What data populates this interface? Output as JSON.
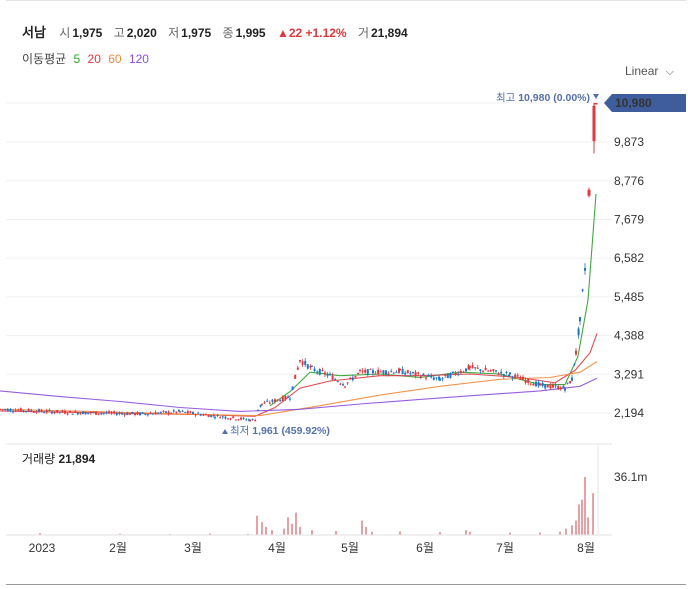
{
  "header": {
    "name": "서남",
    "open_label": "시",
    "open": "1,975",
    "high_label": "고",
    "high": "2,020",
    "low_label": "저",
    "low": "1,975",
    "close_label": "종",
    "close": "1,995",
    "change": "22",
    "change_pct": "+1.12%",
    "volume_label": "거",
    "volume": "21,894"
  },
  "ma": {
    "label": "이동평균",
    "periods": [
      "5",
      "20",
      "60",
      "120"
    ],
    "colors": [
      "#2aa02a",
      "#e0383e",
      "#f08a3c",
      "#8b4fd8"
    ]
  },
  "scale_mode": "Linear",
  "colors": {
    "up": "#e0383e",
    "down": "#1f77c8",
    "price_tag": "#3f5d9c",
    "volume": "#e8a0a4"
  },
  "chart_data": {
    "type": "candlestick",
    "y_ticks": [
      "10,980",
      "9,873",
      "8,776",
      "7,679",
      "6,582",
      "5,485",
      "4,388",
      "3,291",
      "2,194"
    ],
    "y_range": [
      1700,
      11150
    ],
    "x_ticks": [
      "2023",
      "2월",
      "3월",
      "4월",
      "5월",
      "6월",
      "7월",
      "8월"
    ],
    "last_price_label": "10,980",
    "max_annotation": {
      "label": "최고",
      "value": "10,980",
      "pct": "(0.00%)",
      "price": 10980
    },
    "min_annotation": {
      "label": "최저",
      "value": "1,961",
      "pct": "(459.92%)",
      "price": 1961
    },
    "volume_label": "거래량",
    "volume_value": "21,894",
    "volume_max_label": "36.1m",
    "volume_max": 36.1,
    "segments": [
      [
        0,
        2300,
        70,
        2210
      ],
      [
        70,
        2210,
        140,
        2170
      ],
      [
        140,
        2170,
        180,
        2230
      ],
      [
        180,
        2230,
        215,
        2110
      ],
      [
        215,
        2110,
        250,
        2000
      ],
      [
        250,
        2000,
        257,
        2000
      ],
      [
        258,
        2300,
        262,
        2450
      ],
      [
        262,
        2450,
        290,
        2650
      ],
      [
        290,
        2650,
        300,
        3700
      ],
      [
        300,
        3700,
        312,
        3450
      ],
      [
        312,
        3450,
        330,
        3250
      ],
      [
        330,
        3250,
        345,
        3000
      ],
      [
        345,
        3000,
        360,
        3350
      ],
      [
        360,
        3350,
        400,
        3380
      ],
      [
        400,
        3380,
        440,
        3150
      ],
      [
        440,
        3150,
        470,
        3480
      ],
      [
        470,
        3480,
        510,
        3280
      ],
      [
        510,
        3280,
        540,
        2980
      ],
      [
        540,
        2980,
        565,
        2900
      ],
      [
        565,
        2900,
        572,
        3150
      ],
      [
        572,
        3150,
        576,
        3900
      ],
      [
        576,
        3900,
        580,
        4800
      ],
      [
        580,
        4800,
        585,
        6300
      ],
      [
        585,
        6300,
        587,
        6000
      ]
    ],
    "jump_candles": [
      {
        "x": 589,
        "open": 8350,
        "close": 8520,
        "high": 8580,
        "low": 8300
      },
      {
        "x": 594,
        "open": 9900,
        "close": 10900,
        "high": 10980,
        "low": 9550
      },
      {
        "x": 596,
        "open": 10980,
        "close": 10980,
        "high": 10980,
        "low": 10980
      }
    ],
    "ma_points": [
      [
        [
          270,
          2400
        ],
        [
          290,
          2800
        ],
        [
          310,
          3350
        ],
        [
          340,
          3250
        ],
        [
          380,
          3300
        ],
        [
          420,
          3200
        ],
        [
          460,
          3350
        ],
        [
          500,
          3300
        ],
        [
          540,
          3000
        ],
        [
          565,
          3000
        ],
        [
          578,
          3800
        ],
        [
          588,
          5400
        ],
        [
          596,
          8400
        ]
      ],
      [
        [
          0,
          2250
        ],
        [
          100,
          2200
        ],
        [
          200,
          2150
        ],
        [
          255,
          2100
        ],
        [
          275,
          2350
        ],
        [
          300,
          2900
        ],
        [
          330,
          3100
        ],
        [
          380,
          3250
        ],
        [
          420,
          3250
        ],
        [
          470,
          3300
        ],
        [
          520,
          3200
        ],
        [
          555,
          3050
        ],
        [
          575,
          3400
        ],
        [
          590,
          3900
        ],
        [
          597,
          4450
        ]
      ],
      [
        [
          0,
          2300
        ],
        [
          100,
          2230
        ],
        [
          200,
          2150
        ],
        [
          260,
          2120
        ],
        [
          320,
          2400
        ],
        [
          380,
          2700
        ],
        [
          440,
          2950
        ],
        [
          500,
          3150
        ],
        [
          550,
          3200
        ],
        [
          580,
          3350
        ],
        [
          597,
          3650
        ]
      ],
      [
        [
          0,
          2820
        ],
        [
          60,
          2660
        ],
        [
          120,
          2520
        ],
        [
          180,
          2350
        ],
        [
          240,
          2240
        ],
        [
          300,
          2300
        ],
        [
          360,
          2450
        ],
        [
          420,
          2580
        ],
        [
          480,
          2700
        ],
        [
          540,
          2820
        ],
        [
          580,
          2950
        ],
        [
          597,
          3180
        ]
      ]
    ],
    "volume_bars": [
      [
        40,
        1.2
      ],
      [
        120,
        0.8
      ],
      [
        170,
        0.6
      ],
      [
        210,
        0.9
      ],
      [
        248,
        0.7
      ],
      [
        257,
        12
      ],
      [
        262,
        8
      ],
      [
        266,
        5
      ],
      [
        272,
        3
      ],
      [
        284,
        4
      ],
      [
        288,
        11
      ],
      [
        292,
        7
      ],
      [
        296,
        14
      ],
      [
        300,
        5
      ],
      [
        312,
        3
      ],
      [
        336,
        2.5
      ],
      [
        362,
        9
      ],
      [
        366,
        5
      ],
      [
        372,
        2
      ],
      [
        400,
        2.2
      ],
      [
        440,
        1.8
      ],
      [
        466,
        3
      ],
      [
        470,
        2
      ],
      [
        510,
        1.5
      ],
      [
        540,
        1.6
      ],
      [
        560,
        2
      ],
      [
        566,
        4
      ],
      [
        572,
        6
      ],
      [
        576,
        9
      ],
      [
        579,
        19
      ],
      [
        582,
        22
      ],
      [
        585,
        36.1
      ],
      [
        588,
        11
      ],
      [
        593,
        26
      ]
    ]
  }
}
